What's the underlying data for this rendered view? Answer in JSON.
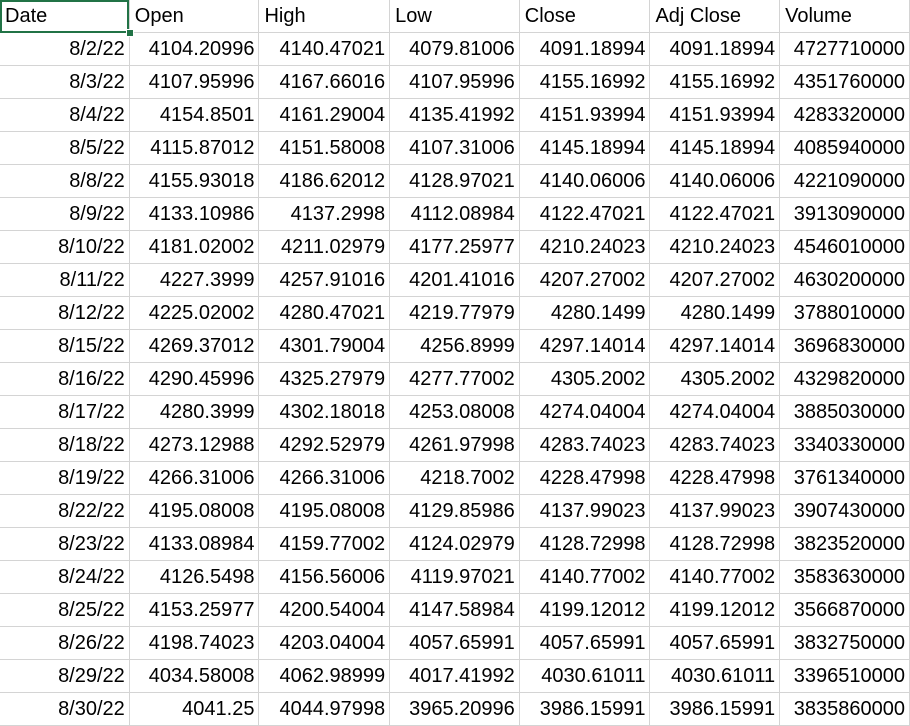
{
  "headers": [
    "Date",
    "Open",
    "High",
    "Low",
    "Close",
    "Adj Close",
    "Volume"
  ],
  "rows": [
    [
      "8/2/22",
      "4104.20996",
      "4140.47021",
      "4079.81006",
      "4091.18994",
      "4091.18994",
      "4727710000"
    ],
    [
      "8/3/22",
      "4107.95996",
      "4167.66016",
      "4107.95996",
      "4155.16992",
      "4155.16992",
      "4351760000"
    ],
    [
      "8/4/22",
      "4154.8501",
      "4161.29004",
      "4135.41992",
      "4151.93994",
      "4151.93994",
      "4283320000"
    ],
    [
      "8/5/22",
      "4115.87012",
      "4151.58008",
      "4107.31006",
      "4145.18994",
      "4145.18994",
      "4085940000"
    ],
    [
      "8/8/22",
      "4155.93018",
      "4186.62012",
      "4128.97021",
      "4140.06006",
      "4140.06006",
      "4221090000"
    ],
    [
      "8/9/22",
      "4133.10986",
      "4137.2998",
      "4112.08984",
      "4122.47021",
      "4122.47021",
      "3913090000"
    ],
    [
      "8/10/22",
      "4181.02002",
      "4211.02979",
      "4177.25977",
      "4210.24023",
      "4210.24023",
      "4546010000"
    ],
    [
      "8/11/22",
      "4227.3999",
      "4257.91016",
      "4201.41016",
      "4207.27002",
      "4207.27002",
      "4630200000"
    ],
    [
      "8/12/22",
      "4225.02002",
      "4280.47021",
      "4219.77979",
      "4280.1499",
      "4280.1499",
      "3788010000"
    ],
    [
      "8/15/22",
      "4269.37012",
      "4301.79004",
      "4256.8999",
      "4297.14014",
      "4297.14014",
      "3696830000"
    ],
    [
      "8/16/22",
      "4290.45996",
      "4325.27979",
      "4277.77002",
      "4305.2002",
      "4305.2002",
      "4329820000"
    ],
    [
      "8/17/22",
      "4280.3999",
      "4302.18018",
      "4253.08008",
      "4274.04004",
      "4274.04004",
      "3885030000"
    ],
    [
      "8/18/22",
      "4273.12988",
      "4292.52979",
      "4261.97998",
      "4283.74023",
      "4283.74023",
      "3340330000"
    ],
    [
      "8/19/22",
      "4266.31006",
      "4266.31006",
      "4218.7002",
      "4228.47998",
      "4228.47998",
      "3761340000"
    ],
    [
      "8/22/22",
      "4195.08008",
      "4195.08008",
      "4129.85986",
      "4137.99023",
      "4137.99023",
      "3907430000"
    ],
    [
      "8/23/22",
      "4133.08984",
      "4159.77002",
      "4124.02979",
      "4128.72998",
      "4128.72998",
      "3823520000"
    ],
    [
      "8/24/22",
      "4126.5498",
      "4156.56006",
      "4119.97021",
      "4140.77002",
      "4140.77002",
      "3583630000"
    ],
    [
      "8/25/22",
      "4153.25977",
      "4200.54004",
      "4147.58984",
      "4199.12012",
      "4199.12012",
      "3566870000"
    ],
    [
      "8/26/22",
      "4198.74023",
      "4203.04004",
      "4057.65991",
      "4057.65991",
      "4057.65991",
      "3832750000"
    ],
    [
      "8/29/22",
      "4034.58008",
      "4062.98999",
      "4017.41992",
      "4030.61011",
      "4030.61011",
      "3396510000"
    ],
    [
      "8/30/22",
      "4041.25",
      "4044.97998",
      "3965.20996",
      "3986.15991",
      "3986.15991",
      "3835860000"
    ]
  ]
}
